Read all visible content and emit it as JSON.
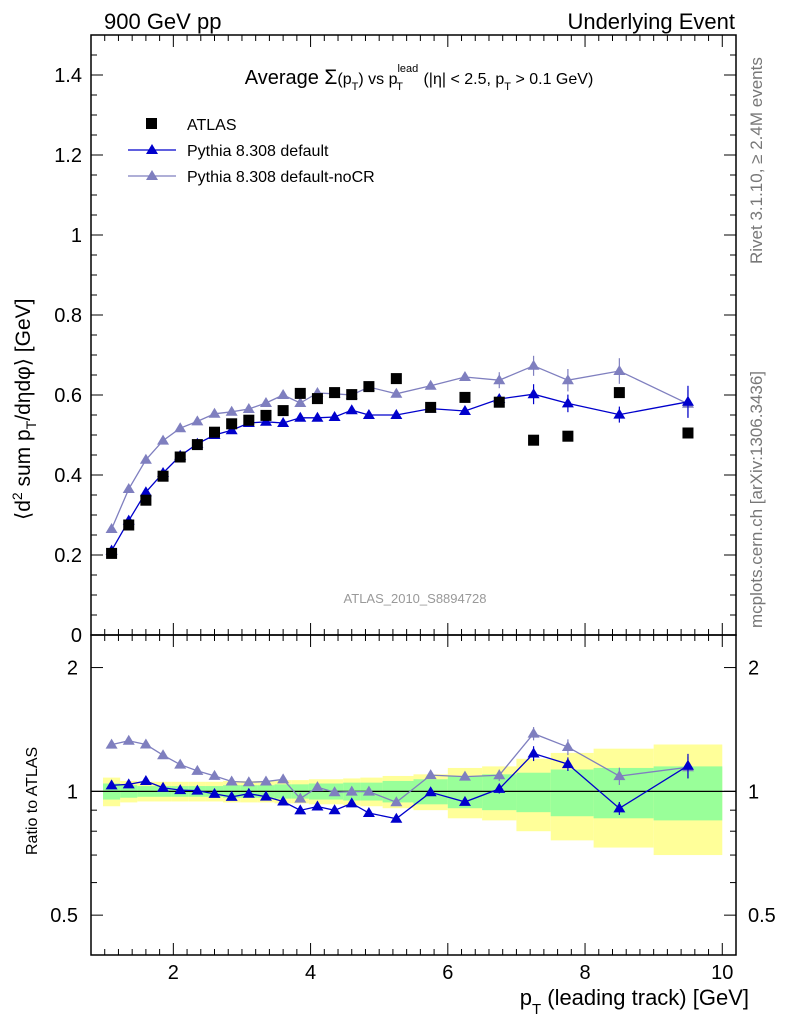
{
  "header": {
    "left": "900 GeV pp",
    "right": "Underlying Event"
  },
  "side_labels": {
    "rivet": "Rivet 3.1.10, ≥ 2.4M events",
    "mcplots": "mcplots.cern.ch [arXiv:1306.3436]"
  },
  "chart_data": {
    "type": "scatter",
    "title": {
      "prefix": "Average ",
      "sigma": "Σ",
      "arg": "(p",
      "arg_sub": "T",
      "arg_close": ")",
      "vs": " vs p",
      "vs_sup": "lead",
      "vs_sub": "T",
      "cut1": " (|η| < 2.5, p",
      "cut_sub": "T",
      "cut2": " > 0.1 GeV)"
    },
    "ylabel": {
      "a": "⟨d",
      "sup2": "2",
      "b": " sum p",
      "subT": "T",
      "c": "/dηdφ⟩ [GeV]"
    },
    "xlabel": {
      "p": "p",
      "sub": "T",
      "rest": " (leading track) [GeV]"
    },
    "ratio_ylabel": "Ratio to ATLAS",
    "reference": "ATLAS_2010_S8894728",
    "xlim": [
      0.8,
      10.2
    ],
    "ylim": [
      0,
      1.5
    ],
    "ratio_ylim": [
      0.4,
      2.4
    ],
    "ratio_scale": "log",
    "x_ticks": [
      2,
      4,
      6,
      8,
      10
    ],
    "x_tick_labels": [
      "2",
      "4",
      "6",
      "8",
      "10"
    ],
    "y_ticks": [
      0,
      0.2,
      0.4,
      0.6,
      0.8,
      1,
      1.2,
      1.4
    ],
    "y_tick_labels": [
      "0",
      "0.2",
      "0.4",
      "0.6",
      "0.8",
      "1",
      "1.2",
      "1.4"
    ],
    "ratio_ticks": [
      0.5,
      1,
      2
    ],
    "ratio_tick_labels": [
      "0.5",
      "1",
      "2"
    ],
    "legend_position": "top-left",
    "x": [
      1.1,
      1.35,
      1.6,
      1.85,
      2.1,
      2.35,
      2.6,
      2.85,
      3.1,
      3.35,
      3.6,
      3.85,
      4.1,
      4.35,
      4.6,
      4.85,
      5.25,
      5.75,
      6.25,
      6.75,
      7.25,
      7.75,
      8.5,
      9.5
    ],
    "series": [
      {
        "name": "ATLAS",
        "color": "#000000",
        "marker": "square",
        "values": [
          0.204,
          0.275,
          0.337,
          0.397,
          0.445,
          0.476,
          0.507,
          0.528,
          0.537,
          0.549,
          0.561,
          0.604,
          0.591,
          0.606,
          0.601,
          0.621,
          0.641,
          0.569,
          0.594,
          0.582,
          0.487,
          0.497,
          0.606,
          0.505
        ],
        "band_total": [
          0.08,
          0.06,
          0.055,
          0.055,
          0.055,
          0.055,
          0.055,
          0.06,
          0.06,
          0.06,
          0.065,
          0.065,
          0.07,
          0.07,
          0.075,
          0.08,
          0.09,
          0.1,
          0.14,
          0.15,
          0.2,
          0.24,
          0.27,
          0.3
        ],
        "band_stat": [
          0.045,
          0.035,
          0.03,
          0.03,
          0.03,
          0.03,
          0.03,
          0.035,
          0.035,
          0.035,
          0.04,
          0.04,
          0.045,
          0.045,
          0.05,
          0.05,
          0.06,
          0.07,
          0.09,
          0.1,
          0.11,
          0.13,
          0.14,
          0.15
        ]
      },
      {
        "name": "Pythia 8.308 default",
        "color": "#0000cc",
        "marker": "triangle",
        "values": [
          0.211,
          0.286,
          0.357,
          0.405,
          0.448,
          0.478,
          0.5,
          0.512,
          0.53,
          0.533,
          0.53,
          0.543,
          0.543,
          0.545,
          0.562,
          0.55,
          0.55,
          0.566,
          0.56,
          0.59,
          0.602,
          0.579,
          0.551,
          0.583
        ],
        "errors": [
          0.003,
          0.003,
          0.003,
          0.003,
          0.003,
          0.003,
          0.003,
          0.003,
          0.004,
          0.004,
          0.004,
          0.005,
          0.005,
          0.005,
          0.006,
          0.006,
          0.007,
          0.008,
          0.01,
          0.015,
          0.025,
          0.022,
          0.02,
          0.04
        ]
      },
      {
        "name": "Pythia 8.308 default-noCR",
        "color": "#7f7fbf",
        "marker": "triangle",
        "values": [
          0.265,
          0.365,
          0.438,
          0.486,
          0.517,
          0.534,
          0.553,
          0.558,
          0.565,
          0.58,
          0.6,
          0.58,
          0.605,
          0.603,
          0.6,
          0.62,
          0.603,
          0.623,
          0.645,
          0.637,
          0.673,
          0.637,
          0.66,
          0.578
        ],
        "errors": [
          0.003,
          0.003,
          0.003,
          0.003,
          0.003,
          0.003,
          0.004,
          0.004,
          0.004,
          0.004,
          0.005,
          0.006,
          0.006,
          0.007,
          0.007,
          0.008,
          0.009,
          0.011,
          0.013,
          0.02,
          0.025,
          0.028,
          0.032,
          0.035
        ]
      }
    ]
  }
}
